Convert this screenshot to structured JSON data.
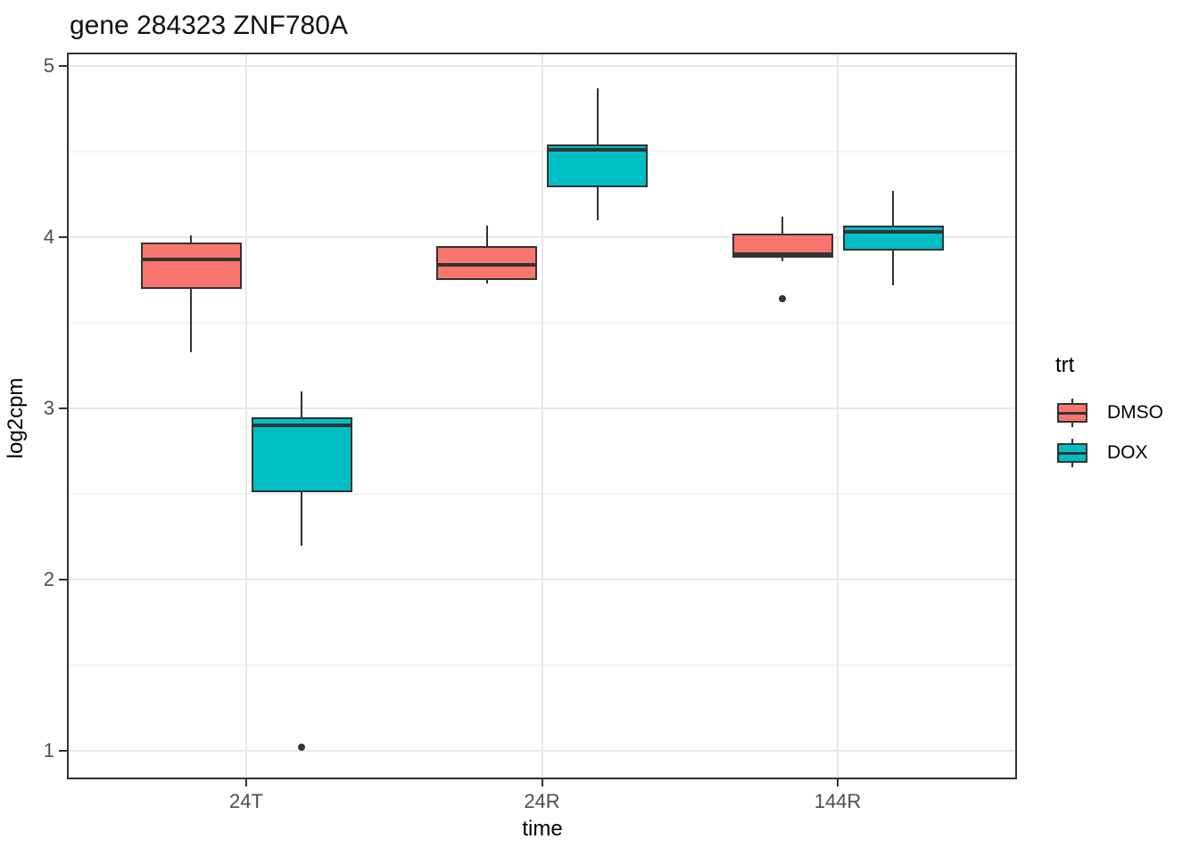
{
  "chart_data": {
    "type": "boxplot",
    "title": "gene 284323 ZNF780A",
    "xlabel": "time",
    "ylabel": "log2cpm",
    "categories": [
      "24T",
      "24R",
      "144R"
    ],
    "y_axis": {
      "min": 1,
      "max": 5,
      "major_ticks": [
        1,
        2,
        3,
        4,
        5
      ],
      "minor_ticks": [
        1.5,
        2.5,
        3.5,
        4.5
      ],
      "displayed_range": [
        0.84,
        5.06
      ]
    },
    "grid": "on",
    "legend": {
      "title": "trt",
      "position": "right",
      "entries": [
        {
          "label": "DMSO",
          "color": "#F8766D"
        },
        {
          "label": "DOX",
          "color": "#00BFC4"
        }
      ]
    },
    "stroke_color": "#333333",
    "series": [
      {
        "name": "DMSO",
        "color": "#F8766D",
        "boxes": [
          {
            "category": "24T",
            "whisker_low": 3.33,
            "q1": 3.7,
            "median": 3.87,
            "q3": 3.97,
            "whisker_high": 4.01,
            "outliers": []
          },
          {
            "category": "24R",
            "whisker_low": 3.73,
            "q1": 3.75,
            "median": 3.84,
            "q3": 3.95,
            "whisker_high": 4.07,
            "outliers": []
          },
          {
            "category": "144R",
            "whisker_low": 3.86,
            "q1": 3.88,
            "median": 3.9,
            "q3": 4.02,
            "whisker_high": 4.12,
            "outliers": [
              3.64
            ]
          }
        ]
      },
      {
        "name": "DOX",
        "color": "#00BFC4",
        "boxes": [
          {
            "category": "24T",
            "whisker_low": 2.2,
            "q1": 2.51,
            "median": 2.9,
            "q3": 2.95,
            "whisker_high": 3.1,
            "outliers": [
              1.02
            ]
          },
          {
            "category": "24R",
            "whisker_low": 4.1,
            "q1": 4.29,
            "median": 4.51,
            "q3": 4.54,
            "whisker_high": 4.87,
            "outliers": []
          },
          {
            "category": "144R",
            "whisker_low": 3.72,
            "q1": 3.92,
            "median": 4.03,
            "q3": 4.07,
            "whisker_high": 4.27,
            "outliers": []
          }
        ]
      }
    ]
  }
}
